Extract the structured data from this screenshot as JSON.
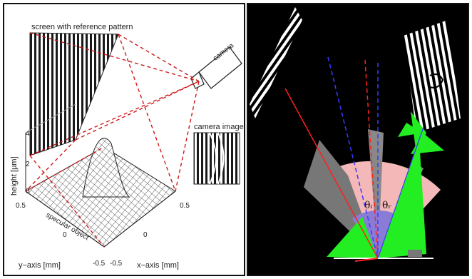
{
  "left_panel": {
    "screen_label": "screen with reference pattern",
    "camera_label": "camera",
    "camera_image_label": "camera image",
    "height_axis_label": "height [μm]",
    "height_ticks": [
      "4",
      "2",
      "0"
    ],
    "surface_label": "specular object",
    "y_axis_label": "y−axis [mm]",
    "x_axis_label": "x−axis [mm]",
    "y_ticks": [
      "0.5",
      "0",
      "-0.5"
    ],
    "x_ticks": [
      "-0.5",
      "0",
      "0.5"
    ],
    "colors": {
      "rays": "#d01818",
      "stripes": "#1a1a1a"
    }
  },
  "right_panel": {
    "theta_left": "θᵢ",
    "theta_right": "θᵣ",
    "colors": {
      "background": "#000000",
      "sector": "#f4b8b8",
      "inner": "#8a7bd6",
      "cone": "#22ee22",
      "red_ray": "#ff2020",
      "blue_ray": "#3a3aff"
    }
  }
}
